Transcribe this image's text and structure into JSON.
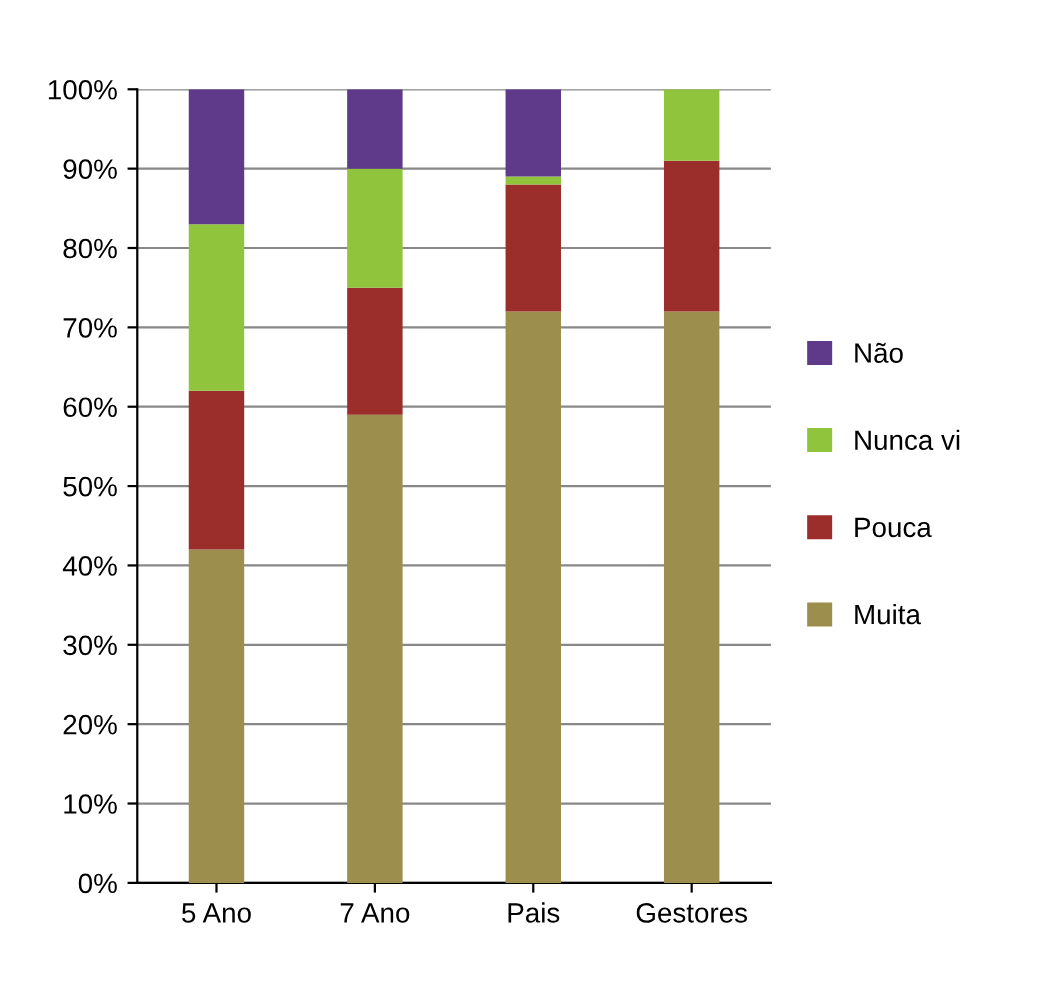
{
  "chart_data": {
    "type": "bar",
    "stacked": true,
    "categories": [
      "5 Ano",
      "7 Ano",
      "Pais",
      "Gestores"
    ],
    "series": [
      {
        "name": "Muita",
        "color": "#9c8f4e",
        "values": [
          42,
          59,
          72,
          72
        ]
      },
      {
        "name": "Pouca",
        "color": "#9b2d2a",
        "values": [
          20,
          16,
          16,
          19
        ]
      },
      {
        "name": "Nunca vi",
        "color": "#8fc43c",
        "values": [
          21,
          15,
          1,
          9
        ]
      },
      {
        "name": "Não",
        "color": "#5f3a8a",
        "values": [
          17,
          10,
          11,
          0
        ]
      }
    ],
    "ylim": [
      0,
      100
    ],
    "yticks": [
      {
        "value": 0,
        "label": "0%"
      },
      {
        "value": 10,
        "label": "10%"
      },
      {
        "value": 20,
        "label": "20%"
      },
      {
        "value": 30,
        "label": "30%"
      },
      {
        "value": 40,
        "label": "40%"
      },
      {
        "value": 50,
        "label": "50%"
      },
      {
        "value": 60,
        "label": "60%"
      },
      {
        "value": 70,
        "label": "70%"
      },
      {
        "value": 80,
        "label": "80%"
      },
      {
        "value": 90,
        "label": "90%"
      },
      {
        "value": 100,
        "label": "100%"
      }
    ],
    "grid": "y",
    "legend": "right"
  }
}
